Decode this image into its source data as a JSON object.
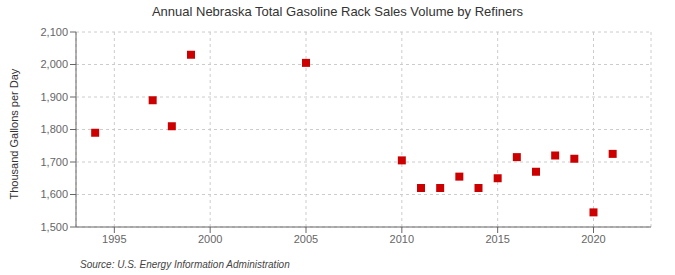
{
  "chart_data": {
    "type": "scatter",
    "title": "Annual Nebraska Total Gasoline Rack Sales Volume by Refiners",
    "y_label": "Thousand Gallons per Day",
    "annotations": [
      "Source: U.S. Energy Information Administration"
    ],
    "x": [
      1994,
      1997,
      1998,
      1999,
      2005,
      2010,
      2011,
      2012,
      2013,
      2014,
      2015,
      2016,
      2017,
      2018,
      2019,
      2020,
      2021
    ],
    "values": [
      1790,
      1890,
      1810,
      2030,
      2005,
      1705,
      1620,
      1620,
      1655,
      1620,
      1650,
      1715,
      1670,
      1720,
      1710,
      1545,
      1725
    ],
    "color": "#cc0000",
    "marker": "square",
    "xlim": [
      1993.0,
      2023.0
    ],
    "ylim": [
      1500,
      2100
    ],
    "xticks": [
      1995,
      2000,
      2005,
      2010,
      2015,
      2020
    ],
    "yticks": [
      {
        "value": 1500,
        "label": "1,500"
      },
      {
        "value": 1600,
        "label": "1,600"
      },
      {
        "value": 1700,
        "label": "1,700"
      },
      {
        "value": 1800,
        "label": "1,800"
      },
      {
        "value": 1900,
        "label": "1,900"
      },
      {
        "value": 2000,
        "label": "2,000"
      },
      {
        "value": 2100,
        "label": "2,100"
      }
    ],
    "grid": true
  }
}
